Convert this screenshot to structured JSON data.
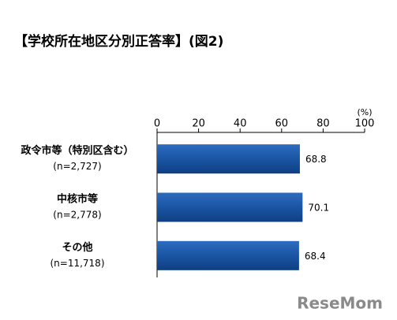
{
  "chart_data": {
    "type": "hbar",
    "title": "【学校所在地区分別正答率】(図2)",
    "categories": [
      "政令市等（特別区含む）",
      "中核市等",
      "その他"
    ],
    "category_notes": [
      "(n=2,727)",
      "(n=2,778)",
      "(n=11,718)"
    ],
    "values": [
      68.8,
      70.1,
      68.4
    ],
    "color": "#1f5aa6",
    "xlim": [
      0,
      100
    ],
    "xticks": [
      0,
      20,
      40,
      60,
      80,
      100
    ],
    "x_unit": "(%)",
    "watermark": "ReseMom"
  }
}
